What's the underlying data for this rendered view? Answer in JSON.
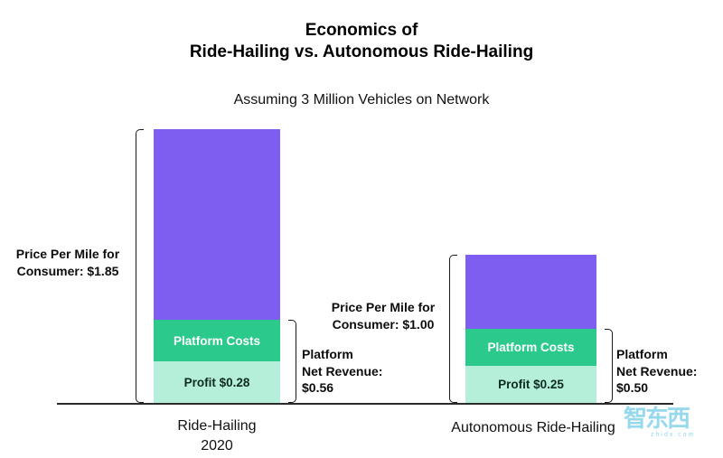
{
  "title": {
    "line1": "Economics of",
    "line2": "Ride-Hailing vs. Autonomous Ride-Hailing"
  },
  "subtitle": "Assuming 3 Million Vehicles on Network",
  "watermark": {
    "text": "智东西",
    "subtext": "zhidx.com"
  },
  "colors": {
    "consumer_price_purple": "#7d5ef1",
    "platform_costs_green": "#2bc98b",
    "profit_mint": "#b5efda",
    "text": "#0d0d0d"
  },
  "chart_data": {
    "type": "bar",
    "stacked": true,
    "units": "USD per mile",
    "title": "Economics of Ride-Hailing vs. Autonomous Ride-Hailing",
    "subtitle": "Assuming 3 Million Vehicles on Network",
    "value_axis": {
      "min": 0,
      "visible": false
    },
    "categories": [
      "Ride-Hailing 2020",
      "Autonomous Ride-Hailing"
    ],
    "bars": [
      {
        "category_lines": [
          "Ride-Hailing",
          "2020"
        ],
        "price_per_mile": 1.85,
        "platform_net_revenue": 0.56,
        "platform_costs": 0.28,
        "profit": 0.28,
        "segments": [
          {
            "name": "consumer-price-remainder",
            "label": "",
            "value": 1.29,
            "color": "#7d5ef1"
          },
          {
            "name": "platform-costs",
            "label": "Platform Costs",
            "value": 0.28,
            "color": "#2bc98b"
          },
          {
            "name": "profit",
            "label": "Profit $0.28",
            "value": 0.28,
            "color": "#b5efda"
          }
        ],
        "price_label_lines": [
          "Price Per Mile for",
          "Consumer: $1.85"
        ],
        "net_revenue_label_lines": [
          "Platform",
          "Net Revenue:",
          "$0.56"
        ]
      },
      {
        "category_lines": [
          "Autonomous Ride-Hailing"
        ],
        "price_per_mile": 1.0,
        "platform_net_revenue": 0.5,
        "platform_costs": 0.25,
        "profit": 0.25,
        "segments": [
          {
            "name": "consumer-price-remainder",
            "label": "",
            "value": 0.5,
            "color": "#7d5ef1"
          },
          {
            "name": "platform-costs",
            "label": "Platform Costs",
            "value": 0.25,
            "color": "#2bc98b"
          },
          {
            "name": "profit",
            "label": "Profit $0.25",
            "value": 0.25,
            "color": "#b5efda"
          }
        ],
        "price_label_lines": [
          "Price Per Mile for",
          "Consumer: $1.00"
        ],
        "net_revenue_label_lines": [
          "Platform",
          "Net Revenue:",
          "$0.50"
        ]
      }
    ]
  }
}
